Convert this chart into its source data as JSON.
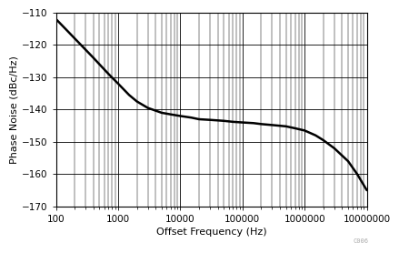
{
  "title": "",
  "xlabel": "Offset Frequency (Hz)",
  "ylabel": "Phase Noise (dBc/Hz)",
  "xlim": [
    100,
    10000000
  ],
  "ylim": [
    -170,
    -110
  ],
  "yticks": [
    -170,
    -160,
    -150,
    -140,
    -130,
    -120,
    -110
  ],
  "background_color": "#ffffff",
  "line_color": "#000000",
  "line_width": 1.8,
  "curve_x": [
    100,
    150,
    200,
    300,
    400,
    500,
    700,
    1000,
    1500,
    2000,
    3000,
    5000,
    7000,
    10000,
    15000,
    20000,
    30000,
    50000,
    70000,
    100000,
    150000,
    200000,
    300000,
    500000,
    700000,
    1000000,
    1500000,
    2000000,
    3000000,
    5000000,
    7000000,
    10000000
  ],
  "curve_y": [
    -112,
    -115.5,
    -118,
    -121.5,
    -124,
    -126,
    -129,
    -132,
    -135.5,
    -137.5,
    -139.5,
    -141,
    -141.5,
    -142,
    -142.5,
    -143,
    -143.2,
    -143.5,
    -143.8,
    -144,
    -144.2,
    -144.5,
    -144.8,
    -145.2,
    -145.8,
    -146.5,
    -148,
    -149.5,
    -152,
    -156,
    -160,
    -165
  ],
  "watermark": "C006",
  "font_size_label": 8,
  "font_size_tick": 7.5,
  "xtick_labels": [
    "100",
    "1000",
    "10000",
    "100000",
    "1000000",
    "10000000"
  ],
  "xtick_vals": [
    100,
    1000,
    10000,
    100000,
    1000000,
    10000000
  ]
}
